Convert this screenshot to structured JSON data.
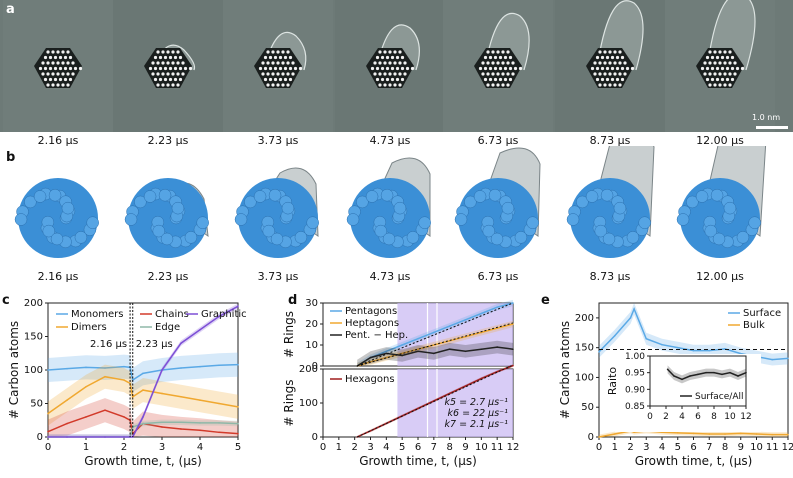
{
  "panels": {
    "a": "a",
    "b": "b",
    "c": "c",
    "d": "d",
    "e": "e"
  },
  "times": [
    "2.16 μs",
    "2.23 μs",
    "3.73 μs",
    "4.73 μs",
    "6.73 μs",
    "8.73 μs",
    "12.00 μs"
  ],
  "scalebar": "1.0 nm",
  "colors": {
    "monomers": "#5aa9e6",
    "dimers": "#f0a830",
    "chains": "#d23a2a",
    "edge": "#8fb8a8",
    "graphitic": "#7d4fd6",
    "pentagons": "#5aa9e6",
    "heptagons": "#f0a830",
    "pminush": "#222222",
    "hexagons": "#a01e1e",
    "surface": "#5aa9e6",
    "bulk": "#f0a830",
    "atom": "#3b8fd6",
    "shade": "#c8b6f2"
  },
  "chart_data": [
    {
      "type": "line",
      "id": "c",
      "xlabel": "Growth time, t, (μs)",
      "ylabel": "# Carbon atoms",
      "xlim": [
        0,
        5
      ],
      "ylim": [
        0,
        200
      ],
      "xticks": [
        "0",
        "1",
        "2",
        "3",
        "4",
        "5"
      ],
      "yticks": [
        "0",
        "50",
        "100",
        "150",
        "200"
      ],
      "annotations": [
        "2.16 μs",
        "2.23 μs"
      ],
      "legend": [
        "Monomers",
        "Dimers",
        "Chains",
        "Edge",
        "Graphitic"
      ],
      "x": [
        0,
        0.5,
        1,
        1.5,
        2,
        2.16,
        2.23,
        2.5,
        3,
        3.5,
        4,
        4.5,
        5
      ],
      "series": [
        {
          "name": "Monomers",
          "values": [
            100,
            102,
            104,
            103,
            105,
            104,
            85,
            95,
            100,
            103,
            105,
            107,
            108
          ]
        },
        {
          "name": "Dimers",
          "values": [
            35,
            55,
            75,
            90,
            85,
            80,
            60,
            70,
            65,
            60,
            55,
            50,
            45
          ]
        },
        {
          "name": "Chains",
          "values": [
            8,
            20,
            30,
            40,
            30,
            25,
            5,
            20,
            15,
            12,
            10,
            7,
            5
          ]
        },
        {
          "name": "Edge",
          "values": [
            0,
            0,
            0,
            0,
            0,
            0,
            15,
            20,
            22,
            22,
            21,
            21,
            20
          ]
        },
        {
          "name": "Graphitic",
          "values": [
            0,
            0,
            0,
            0,
            0,
            0,
            0,
            30,
            100,
            140,
            160,
            180,
            195
          ]
        }
      ]
    },
    {
      "type": "line",
      "id": "d1",
      "ylabel": "# Rings",
      "xlim": [
        0,
        12
      ],
      "ylim": [
        0,
        30
      ],
      "yticks": [
        "0",
        "10",
        "20",
        "30"
      ],
      "legend": [
        "Pentagons",
        "Heptagons",
        "Pent. − Hep."
      ],
      "x": [
        2.16,
        3,
        4,
        5,
        6,
        7,
        8,
        9,
        10,
        11,
        12
      ],
      "series": [
        {
          "name": "Pentagons",
          "values": [
            0,
            4,
            7,
            10,
            13,
            16,
            19,
            22,
            25,
            28,
            30
          ]
        },
        {
          "name": "Heptagons",
          "values": [
            0,
            2,
            4,
            6,
            8,
            10,
            12,
            14,
            16,
            18,
            20
          ]
        },
        {
          "name": "Pent. − Hep.",
          "values": [
            0,
            4,
            6,
            5,
            7,
            6,
            8,
            7,
            8,
            9,
            8
          ]
        }
      ]
    },
    {
      "type": "line",
      "id": "d2",
      "xlabel": "Growth time, t, (μs)",
      "ylabel": "# Rings",
      "xlim": [
        0,
        12
      ],
      "ylim": [
        0,
        200
      ],
      "xticks": [
        "0",
        "1",
        "2",
        "3",
        "4",
        "5",
        "6",
        "7",
        "8",
        "9",
        "10",
        "11",
        "12"
      ],
      "yticks": [
        "0",
        "100",
        "200"
      ],
      "legend": [
        "Hexagons"
      ],
      "rates": [
        "k5 = 2.7 μs⁻¹",
        "k6 = 22 μs⁻¹",
        "k7 = 2.1 μs⁻¹"
      ],
      "x": [
        2.16,
        3,
        4,
        5,
        6,
        7,
        8,
        9,
        10,
        11,
        12
      ],
      "series": [
        {
          "name": "Hexagons",
          "values": [
            0,
            18,
            40,
            62,
            84,
            106,
            128,
            150,
            172,
            192,
            210
          ]
        }
      ]
    },
    {
      "type": "line",
      "id": "e",
      "xlabel": "Growth time, t, (μs)",
      "ylabel": "# Carbon atoms",
      "xlim": [
        0,
        12
      ],
      "ylim": [
        0,
        225
      ],
      "xticks": [
        "0",
        "1",
        "2",
        "3",
        "4",
        "5",
        "6",
        "7",
        "8",
        "9",
        "10",
        "11",
        "12"
      ],
      "yticks": [
        "0",
        "50",
        "100",
        "150",
        "200"
      ],
      "legend": [
        "Surface",
        "Bulk"
      ],
      "x": [
        0,
        1,
        2,
        2.23,
        3,
        4,
        5,
        6,
        7,
        8,
        9,
        10,
        11,
        12
      ],
      "series": [
        {
          "name": "Surface",
          "values": [
            143,
            170,
            200,
            215,
            165,
            155,
            150,
            145,
            145,
            148,
            140,
            135,
            130,
            132
          ]
        },
        {
          "name": "Bulk",
          "values": [
            0,
            5,
            10,
            8,
            10,
            8,
            7,
            6,
            5,
            5,
            6,
            5,
            4,
            4
          ]
        }
      ],
      "reference_line": 147
    },
    {
      "type": "line",
      "id": "e_inset",
      "xlabel": "",
      "ylabel": "Raito",
      "xlim": [
        0,
        12
      ],
      "ylim": [
        0.85,
        1.0
      ],
      "xticks": [
        "0",
        "2",
        "4",
        "6",
        "8",
        "10",
        "12"
      ],
      "yticks": [
        "0.85",
        "0.90",
        "0.95",
        "1.00"
      ],
      "legend": [
        "Surface/All"
      ],
      "x": [
        2.2,
        3,
        4,
        5,
        6,
        7,
        8,
        9,
        10,
        11,
        12
      ],
      "series": [
        {
          "name": "Surface/All",
          "values": [
            0.96,
            0.94,
            0.93,
            0.94,
            0.945,
            0.95,
            0.95,
            0.945,
            0.95,
            0.94,
            0.95
          ]
        }
      ]
    }
  ]
}
